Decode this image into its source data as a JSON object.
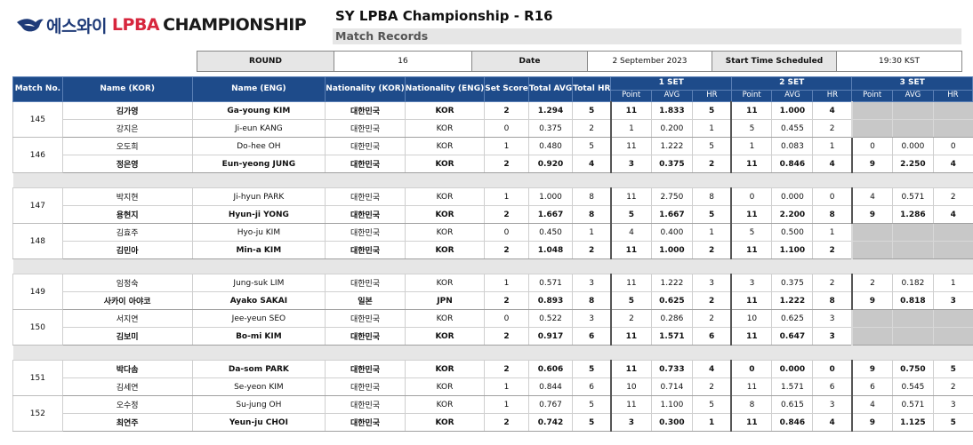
{
  "logo": {
    "korean": "에스와이",
    "lpba": "LPBA",
    "championship": "CHAMPIONSHIP"
  },
  "title": "SY LPBA Championship - R16",
  "subtitle": "Match Records",
  "info": {
    "round_label": "ROUND",
    "round_value": "16",
    "date_label": "Date",
    "date_value": "2 September 2023",
    "start_label": "Start Time Scheduled",
    "start_value": "19:30 KST"
  },
  "header": {
    "match": "Match No.",
    "name_kor": "Name (KOR)",
    "name_eng": "Name (ENG)",
    "nat_kor": "Nationality (KOR)",
    "nat_eng": "Nationality (ENG)",
    "set_score": "Set Score",
    "total_avg": "Total AVG",
    "total_hr": "Total HR",
    "set1": "1 SET",
    "set2": "2 SET",
    "set3": "3 SET",
    "point": "Point",
    "avg": "AVG",
    "hr": "HR"
  },
  "groups": [
    {
      "matches": [
        {
          "no": "145",
          "rows": [
            {
              "win": true,
              "name_kor": "김가영",
              "name_eng": "Ga-young KIM",
              "nat_kor": "대한민국",
              "nat_eng": "KOR",
              "score": "2",
              "avg": "1.294",
              "hr": "5",
              "s1": [
                "11",
                "1.833",
                "5"
              ],
              "s2": [
                "11",
                "1.000",
                "4"
              ],
              "s3": null
            },
            {
              "win": false,
              "name_kor": "강지은",
              "name_eng": "Ji-eun KANG",
              "nat_kor": "대한민국",
              "nat_eng": "KOR",
              "score": "0",
              "avg": "0.375",
              "hr": "2",
              "s1": [
                "1",
                "0.200",
                "1"
              ],
              "s2": [
                "5",
                "0.455",
                "2"
              ],
              "s3": null
            }
          ]
        },
        {
          "no": "146",
          "rows": [
            {
              "win": false,
              "name_kor": "오도희",
              "name_eng": "Do-hee OH",
              "nat_kor": "대한민국",
              "nat_eng": "KOR",
              "score": "1",
              "avg": "0.480",
              "hr": "5",
              "s1": [
                "11",
                "1.222",
                "5"
              ],
              "s2": [
                "1",
                "0.083",
                "1"
              ],
              "s3": [
                "0",
                "0.000",
                "0"
              ]
            },
            {
              "win": true,
              "name_kor": "정은영",
              "name_eng": "Eun-yeong JUNG",
              "nat_kor": "대한민국",
              "nat_eng": "KOR",
              "score": "2",
              "avg": "0.920",
              "hr": "4",
              "s1": [
                "3",
                "0.375",
                "2"
              ],
              "s2": [
                "11",
                "0.846",
                "4"
              ],
              "s3": [
                "9",
                "2.250",
                "4"
              ]
            }
          ]
        }
      ]
    },
    {
      "matches": [
        {
          "no": "147",
          "rows": [
            {
              "win": false,
              "name_kor": "박지현",
              "name_eng": "Ji-hyun PARK",
              "nat_kor": "대한민국",
              "nat_eng": "KOR",
              "score": "1",
              "avg": "1.000",
              "hr": "8",
              "s1": [
                "11",
                "2.750",
                "8"
              ],
              "s2": [
                "0",
                "0.000",
                "0"
              ],
              "s3": [
                "4",
                "0.571",
                "2"
              ]
            },
            {
              "win": true,
              "name_kor": "용현지",
              "name_eng": "Hyun-ji YONG",
              "nat_kor": "대한민국",
              "nat_eng": "KOR",
              "score": "2",
              "avg": "1.667",
              "hr": "8",
              "s1": [
                "5",
                "1.667",
                "5"
              ],
              "s2": [
                "11",
                "2.200",
                "8"
              ],
              "s3": [
                "9",
                "1.286",
                "4"
              ]
            }
          ]
        },
        {
          "no": "148",
          "rows": [
            {
              "win": false,
              "name_kor": "김효주",
              "name_eng": "Hyo-ju KIM",
              "nat_kor": "대한민국",
              "nat_eng": "KOR",
              "score": "0",
              "avg": "0.450",
              "hr": "1",
              "s1": [
                "4",
                "0.400",
                "1"
              ],
              "s2": [
                "5",
                "0.500",
                "1"
              ],
              "s3": null
            },
            {
              "win": true,
              "name_kor": "김민아",
              "name_eng": "Min-a KIM",
              "nat_kor": "대한민국",
              "nat_eng": "KOR",
              "score": "2",
              "avg": "1.048",
              "hr": "2",
              "s1": [
                "11",
                "1.000",
                "2"
              ],
              "s2": [
                "11",
                "1.100",
                "2"
              ],
              "s3": null
            }
          ]
        }
      ]
    },
    {
      "matches": [
        {
          "no": "149",
          "rows": [
            {
              "win": false,
              "name_kor": "임정숙",
              "name_eng": "Jung-suk LIM",
              "nat_kor": "대한민국",
              "nat_eng": "KOR",
              "score": "1",
              "avg": "0.571",
              "hr": "3",
              "s1": [
                "11",
                "1.222",
                "3"
              ],
              "s2": [
                "3",
                "0.375",
                "2"
              ],
              "s3": [
                "2",
                "0.182",
                "1"
              ]
            },
            {
              "win": true,
              "name_kor": "사카이 아야코",
              "name_eng": "Ayako SAKAI",
              "nat_kor": "일본",
              "nat_eng": "JPN",
              "score": "2",
              "avg": "0.893",
              "hr": "8",
              "s1": [
                "5",
                "0.625",
                "2"
              ],
              "s2": [
                "11",
                "1.222",
                "8"
              ],
              "s3": [
                "9",
                "0.818",
                "3"
              ]
            }
          ]
        },
        {
          "no": "150",
          "rows": [
            {
              "win": false,
              "name_kor": "서지연",
              "name_eng": "Jee-yeun SEO",
              "nat_kor": "대한민국",
              "nat_eng": "KOR",
              "score": "0",
              "avg": "0.522",
              "hr": "3",
              "s1": [
                "2",
                "0.286",
                "2"
              ],
              "s2": [
                "10",
                "0.625",
                "3"
              ],
              "s3": null
            },
            {
              "win": true,
              "name_kor": "김보미",
              "name_eng": "Bo-mi KIM",
              "nat_kor": "대한민국",
              "nat_eng": "KOR",
              "score": "2",
              "avg": "0.917",
              "hr": "6",
              "s1": [
                "11",
                "1.571",
                "6"
              ],
              "s2": [
                "11",
                "0.647",
                "3"
              ],
              "s3": null
            }
          ]
        }
      ]
    },
    {
      "matches": [
        {
          "no": "151",
          "rows": [
            {
              "win": true,
              "name_kor": "박다솜",
              "name_eng": "Da-som PARK",
              "nat_kor": "대한민국",
              "nat_eng": "KOR",
              "score": "2",
              "avg": "0.606",
              "hr": "5",
              "s1": [
                "11",
                "0.733",
                "4"
              ],
              "s2": [
                "0",
                "0.000",
                "0"
              ],
              "s3": [
                "9",
                "0.750",
                "5"
              ]
            },
            {
              "win": false,
              "name_kor": "김세연",
              "name_eng": "Se-yeon KIM",
              "nat_kor": "대한민국",
              "nat_eng": "KOR",
              "score": "1",
              "avg": "0.844",
              "hr": "6",
              "s1": [
                "10",
                "0.714",
                "2"
              ],
              "s2": [
                "11",
                "1.571",
                "6"
              ],
              "s3": [
                "6",
                "0.545",
                "2"
              ]
            }
          ]
        },
        {
          "no": "152",
          "rows": [
            {
              "win": false,
              "name_kor": "오수정",
              "name_eng": "Su-jung OH",
              "nat_kor": "대한민국",
              "nat_eng": "KOR",
              "score": "1",
              "avg": "0.767",
              "hr": "5",
              "s1": [
                "11",
                "1.100",
                "5"
              ],
              "s2": [
                "8",
                "0.615",
                "3"
              ],
              "s3": [
                "4",
                "0.571",
                "3"
              ]
            },
            {
              "win": true,
              "name_kor": "최연주",
              "name_eng": "Yeun-ju CHOI",
              "nat_kor": "대한민국",
              "nat_eng": "KOR",
              "score": "2",
              "avg": "0.742",
              "hr": "5",
              "s1": [
                "3",
                "0.300",
                "1"
              ],
              "s2": [
                "11",
                "0.846",
                "4"
              ],
              "s3": [
                "9",
                "1.125",
                "5"
              ]
            }
          ]
        }
      ]
    }
  ]
}
